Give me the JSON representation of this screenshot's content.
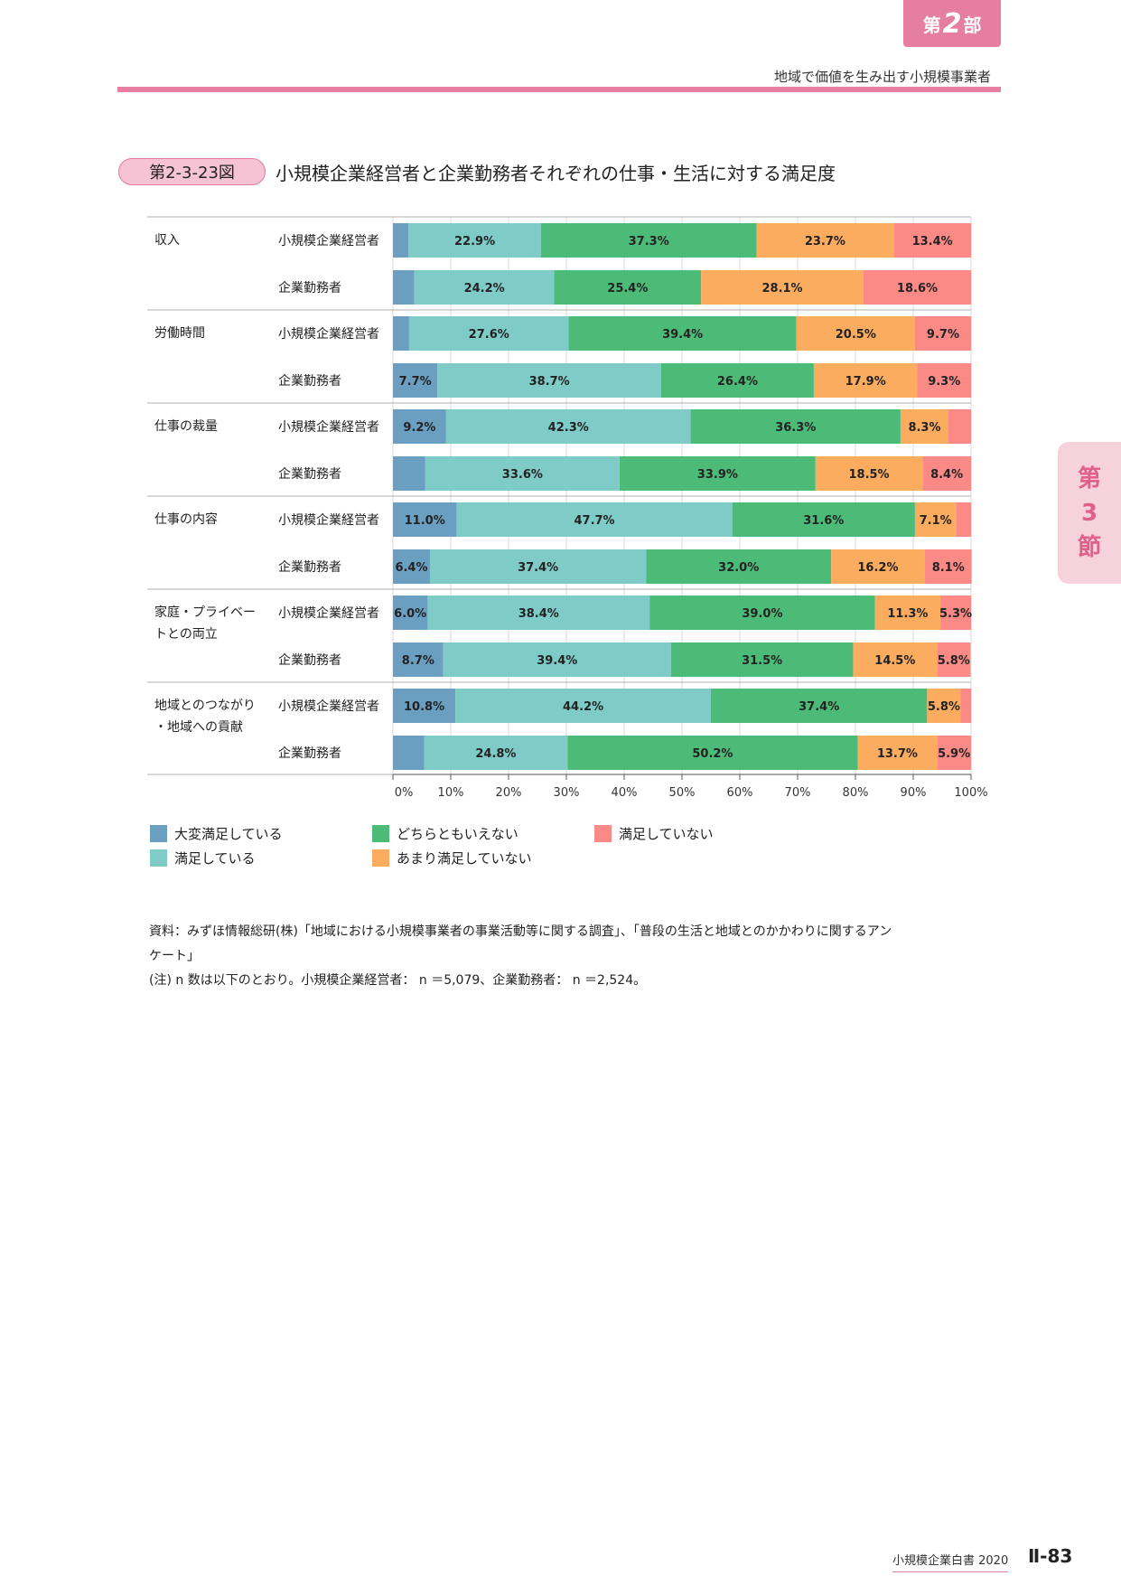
{
  "header": {
    "part_prefix": "第",
    "part_number": "2",
    "part_suffix": "部",
    "running_title": "地域で価値を生み出す小規模事業者"
  },
  "side_tab": {
    "line1": "第",
    "line2": "3",
    "line3": "節"
  },
  "figure": {
    "label": "第2-3-23図",
    "title": "小規模企業経営者と企業勤務者それぞれの仕事・生活に対する満足度"
  },
  "colors": {
    "very_satisfied": "#6a9fc2",
    "satisfied": "#7ecbc8",
    "neutral": "#4dbb78",
    "not_very_satisfied": "#fcac5e",
    "not_satisfied": "#fb8a87"
  },
  "chart_data": {
    "type": "bar",
    "orientation": "horizontal",
    "stacked": true,
    "xlim": [
      0,
      100
    ],
    "xticks": [
      "0%",
      "10%",
      "20%",
      "30%",
      "40%",
      "50%",
      "60%",
      "70%",
      "80%",
      "90%",
      "100%"
    ],
    "grid": true,
    "legend_position": "bottom",
    "series": [
      {
        "name": "大変満足している",
        "color": "#6a9fc2"
      },
      {
        "name": "満足している",
        "color": "#7ecbc8"
      },
      {
        "name": "どちらともいえない",
        "color": "#4dbb78"
      },
      {
        "name": "あまり満足していない",
        "color": "#fcac5e"
      },
      {
        "name": "満足していない",
        "color": "#fb8a87"
      }
    ],
    "groups": [
      {
        "name": "収入",
        "rows": [
          {
            "label": "小規模企業経営者",
            "values": [
              2.7,
              22.9,
              37.3,
              23.7,
              13.4
            ],
            "labels": [
              "",
              "22.9%",
              "37.3%",
              "23.7%",
              "13.4%"
            ]
          },
          {
            "label": "企業勤務者",
            "values": [
              3.7,
              24.2,
              25.4,
              28.1,
              18.6
            ],
            "labels": [
              "",
              "24.2%",
              "25.4%",
              "28.1%",
              "18.6%"
            ]
          }
        ]
      },
      {
        "name": "労働時間",
        "rows": [
          {
            "label": "小規模企業経営者",
            "values": [
              2.8,
              27.6,
              39.4,
              20.5,
              9.7
            ],
            "labels": [
              "",
              "27.6%",
              "39.4%",
              "20.5%",
              "9.7%"
            ]
          },
          {
            "label": "企業勤務者",
            "values": [
              7.7,
              38.7,
              26.4,
              17.9,
              9.3
            ],
            "labels": [
              "7.7%",
              "38.7%",
              "26.4%",
              "17.9%",
              "9.3%"
            ]
          }
        ]
      },
      {
        "name": "仕事の裁量",
        "rows": [
          {
            "label": "小規模企業経営者",
            "values": [
              9.2,
              42.3,
              36.3,
              8.3,
              3.9
            ],
            "labels": [
              "9.2%",
              "42.3%",
              "36.3%",
              "8.3%",
              ""
            ]
          },
          {
            "label": "企業勤務者",
            "values": [
              5.6,
              33.6,
              33.9,
              18.5,
              8.4
            ],
            "labels": [
              "",
              "33.6%",
              "33.9%",
              "18.5%",
              "8.4%"
            ]
          }
        ]
      },
      {
        "name": "仕事の内容",
        "rows": [
          {
            "label": "小規模企業経営者",
            "values": [
              11.0,
              47.7,
              31.6,
              7.1,
              2.6
            ],
            "labels": [
              "11.0%",
              "47.7%",
              "31.6%",
              "7.1%",
              ""
            ]
          },
          {
            "label": "企業勤務者",
            "values": [
              6.4,
              37.4,
              32.0,
              16.2,
              8.1
            ],
            "labels": [
              "6.4%",
              "37.4%",
              "32.0%",
              "16.2%",
              "8.1%"
            ]
          }
        ]
      },
      {
        "name": "家庭・プライベー\nトとの両立",
        "rows": [
          {
            "label": "小規模企業経営者",
            "values": [
              6.0,
              38.4,
              39.0,
              11.3,
              5.3
            ],
            "labels": [
              "6.0%",
              "38.4%",
              "39.0%",
              "11.3%",
              "5.3%"
            ]
          },
          {
            "label": "企業勤務者",
            "values": [
              8.7,
              39.4,
              31.5,
              14.5,
              5.8
            ],
            "labels": [
              "8.7%",
              "39.4%",
              "31.5%",
              "14.5%",
              "5.8%"
            ]
          }
        ]
      },
      {
        "name": "地域とのつながり\n・地域への貢献",
        "rows": [
          {
            "label": "小規模企業経営者",
            "values": [
              10.8,
              44.2,
              37.4,
              5.8,
              1.8
            ],
            "labels": [
              "10.8%",
              "44.2%",
              "37.4%",
              "5.8%",
              ""
            ]
          },
          {
            "label": "企業勤務者",
            "values": [
              5.4,
              24.8,
              50.2,
              13.7,
              5.9
            ],
            "labels": [
              "",
              "24.8%",
              "50.2%",
              "13.7%",
              "5.9%"
            ]
          }
        ]
      }
    ]
  },
  "legend": {
    "items": [
      {
        "label": "大変満足している",
        "color": "#6a9fc2"
      },
      {
        "label": "満足している",
        "color": "#7ecbc8"
      },
      {
        "label": "どちらともいえない",
        "color": "#4dbb78"
      },
      {
        "label": "あまり満足していない",
        "color": "#fcac5e"
      },
      {
        "label": "満足していない",
        "color": "#fb8a87"
      }
    ]
  },
  "source": {
    "line1": "資料：みずほ情報総研(株)「地域における小規模事業者の事業活動等に関する調査」、「普段の生活と地域とのかかわりに関するアン",
    "line2": "ケート」",
    "line3": "(注) n 数は以下のとおり。小規模企業経営者： n ＝5,079、企業勤務者： n ＝2,524。"
  },
  "footer": {
    "book": "小規模企業白書 2020",
    "page": "Ⅱ-83"
  }
}
